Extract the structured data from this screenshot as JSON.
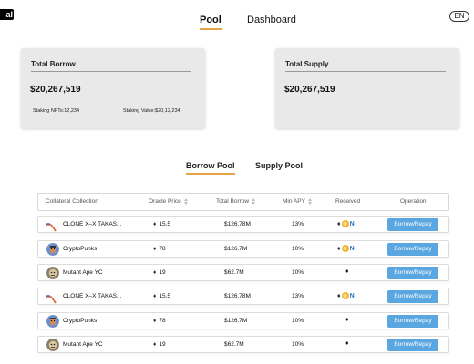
{
  "logo": {
    "text": "al"
  },
  "nav": {
    "pool": "Pool",
    "dashboard": "Dashboard"
  },
  "lang": "EN",
  "borrow_card": {
    "title": "Total Borrow",
    "value": "$20,267,519",
    "staking_nfts": "Staking NFTs:12,234",
    "staking_value": "Staking Value:$20,12,234"
  },
  "supply_card": {
    "title": "Total Supply",
    "value": "$20,267,519"
  },
  "tabs": {
    "borrow_pool": "Borrow Pool",
    "supply_pool": "Supply Pool"
  },
  "table": {
    "headers": {
      "collection": "Collateral Collection",
      "oracle": "Oracle Price",
      "borrow": "Total Borrow",
      "apy": "Min APY",
      "received": "Received",
      "operation": "Operation"
    },
    "rows": [
      {
        "name": "CLONE X–X TAKAS...",
        "icon": "clone-x-icon",
        "price": "15.5",
        "borrow": "$126.78M",
        "apy": "13%",
        "received": [
          "eth-icon",
          "coin-icon",
          "nn-icon"
        ],
        "button": "Borrow/Repay"
      },
      {
        "name": "CryptoPunks",
        "icon": "cryptopunks-avatar-icon",
        "price": "78",
        "borrow": "$126.7M",
        "apy": "10%",
        "received": [
          "eth-icon",
          "coin-icon",
          "nn-icon"
        ],
        "button": "Borrow/Repay"
      },
      {
        "name": "Mutant Ape YC",
        "icon": "mutant-ape-avatar-icon",
        "price": "19",
        "borrow": "$62.7M",
        "apy": "10%",
        "received": [
          "eth-icon"
        ],
        "button": "Borrow/Repay"
      },
      {
        "name": "CLONE X–X TAKAS...",
        "icon": "clone-x-icon",
        "price": "15.5",
        "borrow": "$126.78M",
        "apy": "13%",
        "received": [
          "eth-icon",
          "coin-icon",
          "nn-icon"
        ],
        "button": "Borrow/Repay"
      },
      {
        "name": "CryptoPunks",
        "icon": "cryptopunks-avatar-icon",
        "price": "78",
        "borrow": "$126.7M",
        "apy": "10%",
        "received": [
          "eth-icon"
        ],
        "button": "Borrow/Repay"
      },
      {
        "name": "Mutant Ape YC",
        "icon": "mutant-ape-avatar-icon",
        "price": "19",
        "borrow": "$62.7M",
        "apy": "10%",
        "received": [
          "eth-icon"
        ],
        "button": "Borrow/Repay"
      }
    ]
  },
  "colors": {
    "accent": "#e5a34a",
    "button": "#5aa6e0",
    "coin": "#f0b429",
    "nn": "#2f6fd6"
  }
}
